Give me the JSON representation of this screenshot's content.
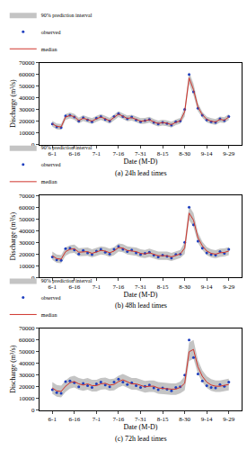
{
  "chart_data": [
    {
      "type": "line",
      "title": "(a) 24h lead times",
      "x_label": "Date (M-D)",
      "y_label": "Discharge (m³/s)",
      "categories": [
        "6-1",
        null,
        null,
        null,
        null,
        "6-16",
        null,
        null,
        null,
        null,
        "7-1",
        null,
        null,
        null,
        null,
        "7-16",
        null,
        null,
        null,
        null,
        "7-31",
        null,
        null,
        null,
        null,
        "8-15",
        null,
        null,
        null,
        null,
        "8-30",
        null,
        null,
        null,
        null,
        "9-14",
        null,
        null,
        null,
        null,
        "9-29"
      ],
      "ylim": [
        0,
        70000
      ],
      "yticks": [
        0,
        10000,
        20000,
        30000,
        40000,
        50000,
        60000,
        70000
      ],
      "grid": false,
      "legend": "top",
      "series": [
        {
          "name": "90% prediction interval",
          "type": "band",
          "color": "#c4c4c4",
          "lower": [
            15300,
            13000,
            12500,
            21000,
            22300,
            21300,
            18000,
            20000,
            18800,
            17500,
            19500,
            21000,
            19500,
            17800,
            20700,
            23500,
            21700,
            19800,
            20500,
            18800,
            17500,
            17800,
            18700,
            16800,
            15500,
            16300,
            15700,
            14500,
            16500,
            17700,
            24000,
            52000,
            42000,
            28500,
            23000,
            19000,
            17500,
            16800,
            19000,
            18300,
            21000
          ],
          "upper": [
            20300,
            18000,
            17500,
            26000,
            27300,
            26300,
            23000,
            25000,
            23800,
            22500,
            24500,
            26000,
            24500,
            22800,
            25700,
            28500,
            26700,
            24800,
            25500,
            23800,
            22500,
            22800,
            23700,
            21800,
            20500,
            21300,
            20700,
            19500,
            21500,
            22700,
            32000,
            62000,
            52000,
            35500,
            28000,
            24000,
            22500,
            21800,
            24000,
            23300,
            26000
          ]
        },
        {
          "name": "observed",
          "type": "scatter",
          "color": "#1f3fbf",
          "marker": "circle",
          "values": [
            17500,
            15000,
            14500,
            24500,
            25000,
            23500,
            20000,
            23000,
            21000,
            19500,
            22500,
            24000,
            21500,
            20000,
            24000,
            26500,
            24000,
            22000,
            23500,
            21000,
            19500,
            20500,
            21500,
            19000,
            17500,
            19000,
            18000,
            16500,
            19500,
            20000,
            30000,
            60000,
            45000,
            31000,
            25000,
            21000,
            19500,
            19000,
            22000,
            20500,
            24000
          ]
        },
        {
          "name": "median",
          "type": "line",
          "color": "#d0342c",
          "line_style": "solid",
          "values": [
            17800,
            15500,
            15000,
            23500,
            24800,
            23800,
            20500,
            22500,
            21300,
            20000,
            22000,
            23500,
            22000,
            20300,
            23200,
            26000,
            24200,
            22300,
            23000,
            21300,
            20000,
            20300,
            21200,
            19300,
            18000,
            18800,
            18200,
            17000,
            19000,
            20200,
            28000,
            57000,
            47000,
            32000,
            25500,
            21500,
            20000,
            19300,
            21500,
            20800,
            23500
          ]
        }
      ]
    },
    {
      "type": "line",
      "title": "(b) 48h lead times",
      "x_label": "Date (M-D)",
      "y_label": "Discharge (m³/s)",
      "categories": [
        "6-1",
        null,
        null,
        null,
        null,
        "6-16",
        null,
        null,
        null,
        null,
        "7-1",
        null,
        null,
        null,
        null,
        "7-16",
        null,
        null,
        null,
        null,
        "7-31",
        null,
        null,
        null,
        null,
        "8-15",
        null,
        null,
        null,
        null,
        "8-30",
        null,
        null,
        null,
        null,
        "9-14",
        null,
        null,
        null,
        null,
        "9-29"
      ],
      "ylim": [
        0,
        70000
      ],
      "yticks": [
        0,
        10000,
        20000,
        30000,
        40000,
        50000,
        60000,
        70000
      ],
      "grid": false,
      "legend": "top",
      "series": [
        {
          "name": "90% prediction interval",
          "type": "band",
          "color": "#c4c4c4",
          "lower": [
            15000,
            12500,
            12000,
            18500,
            20500,
            21000,
            18000,
            18500,
            18500,
            17000,
            18000,
            19500,
            19000,
            17500,
            19000,
            22000,
            21500,
            19500,
            19000,
            18500,
            17000,
            16500,
            17500,
            16500,
            15000,
            15000,
            15000,
            14000,
            15000,
            16500,
            20000,
            49000,
            43000,
            29500,
            23500,
            19000,
            17000,
            16300,
            17500,
            17800,
            19000
          ],
          "upper": [
            22000,
            19500,
            19000,
            25500,
            27500,
            28000,
            25000,
            25500,
            25500,
            24000,
            25000,
            26500,
            26000,
            24500,
            26000,
            29000,
            28500,
            26500,
            26000,
            25500,
            24000,
            23500,
            24500,
            23500,
            22000,
            22000,
            22000,
            21000,
            22000,
            23500,
            30000,
            61000,
            55000,
            38500,
            30500,
            26000,
            24000,
            23300,
            24500,
            24800,
            26000
          ]
        },
        {
          "name": "observed",
          "type": "scatter",
          "color": "#1f3fbf",
          "marker": "circle",
          "values": [
            17500,
            15000,
            14500,
            24500,
            25000,
            23500,
            20000,
            23000,
            21000,
            19500,
            22500,
            24000,
            21500,
            20000,
            24000,
            26500,
            24000,
            22000,
            23500,
            21000,
            19500,
            20500,
            21500,
            19000,
            17500,
            19000,
            18000,
            16500,
            19500,
            20000,
            30000,
            60000,
            45000,
            31000,
            25000,
            21000,
            19500,
            19000,
            22000,
            20500,
            24000
          ]
        },
        {
          "name": "median",
          "type": "line",
          "color": "#d0342c",
          "line_style": "solid",
          "values": [
            18500,
            16000,
            15500,
            22000,
            24000,
            24500,
            21500,
            22000,
            22000,
            20500,
            21500,
            23000,
            22500,
            21000,
            22500,
            25500,
            25000,
            23000,
            22500,
            22000,
            20500,
            20000,
            21000,
            20000,
            18500,
            18500,
            18500,
            17500,
            18500,
            20000,
            25000,
            55000,
            49000,
            34000,
            27000,
            22500,
            20500,
            19800,
            21000,
            21300,
            22500
          ]
        }
      ]
    },
    {
      "type": "line",
      "title": "(c) 72h lead times",
      "x_label": "Date (M-D)",
      "y_label": "Discharge (m³/s)",
      "categories": [
        "6-1",
        null,
        null,
        null,
        null,
        "6-16",
        null,
        null,
        null,
        null,
        "7-1",
        null,
        null,
        null,
        null,
        "7-16",
        null,
        null,
        null,
        null,
        "7-31",
        null,
        null,
        null,
        null,
        "8-15",
        null,
        null,
        null,
        null,
        "8-30",
        null,
        null,
        null,
        null,
        "9-14",
        null,
        null,
        null,
        null,
        "9-29"
      ],
      "ylim": [
        0,
        70000
      ],
      "yticks": [
        0,
        10000,
        20000,
        30000,
        40000,
        50000,
        60000,
        70000
      ],
      "grid": false,
      "legend": "top",
      "series": [
        {
          "name": "90% prediction interval",
          "type": "band",
          "color": "#c4c4c4",
          "lower": [
            14000,
            11500,
            11000,
            15500,
            18500,
            19500,
            17500,
            16500,
            17500,
            16000,
            16000,
            17500,
            18000,
            16500,
            17000,
            19500,
            21000,
            19000,
            17500,
            17500,
            16000,
            15000,
            15500,
            15500,
            14000,
            13500,
            13500,
            13000,
            13000,
            14500,
            17000,
            42000,
            44000,
            31000,
            24000,
            19000,
            16500,
            15500,
            15500,
            16500,
            17000
          ],
          "upper": [
            24000,
            21500,
            21000,
            25500,
            28500,
            29500,
            27500,
            26500,
            27500,
            26000,
            26000,
            27500,
            28000,
            26500,
            27000,
            29500,
            31000,
            29000,
            27500,
            27500,
            26000,
            25000,
            25500,
            25500,
            24000,
            23500,
            23500,
            23000,
            23000,
            24500,
            29000,
            58000,
            60000,
            43000,
            34000,
            29000,
            26500,
            25500,
            25500,
            26500,
            27000
          ]
        },
        {
          "name": "observed",
          "type": "scatter",
          "color": "#1f3fbf",
          "marker": "circle",
          "values": [
            17500,
            15000,
            14500,
            24500,
            25000,
            23500,
            20000,
            23000,
            21000,
            19500,
            22500,
            24000,
            21500,
            20000,
            24000,
            26500,
            24000,
            22000,
            23500,
            21000,
            19500,
            20500,
            21500,
            19000,
            17500,
            19000,
            18000,
            16500,
            19500,
            20000,
            30000,
            60000,
            45000,
            31000,
            25000,
            21000,
            19500,
            19000,
            22000,
            20500,
            24000
          ]
        },
        {
          "name": "median",
          "type": "line",
          "color": "#d0342c",
          "line_style": "solid",
          "values": [
            19000,
            16500,
            16000,
            20500,
            23500,
            24500,
            22500,
            21500,
            22500,
            21000,
            21000,
            22500,
            23000,
            21500,
            22000,
            24500,
            26000,
            24000,
            22500,
            22500,
            21000,
            20000,
            20500,
            20500,
            19000,
            18500,
            18500,
            18000,
            18000,
            19500,
            23000,
            50000,
            52000,
            37000,
            29000,
            24000,
            21500,
            20500,
            20500,
            21500,
            22000
          ]
        }
      ]
    }
  ]
}
